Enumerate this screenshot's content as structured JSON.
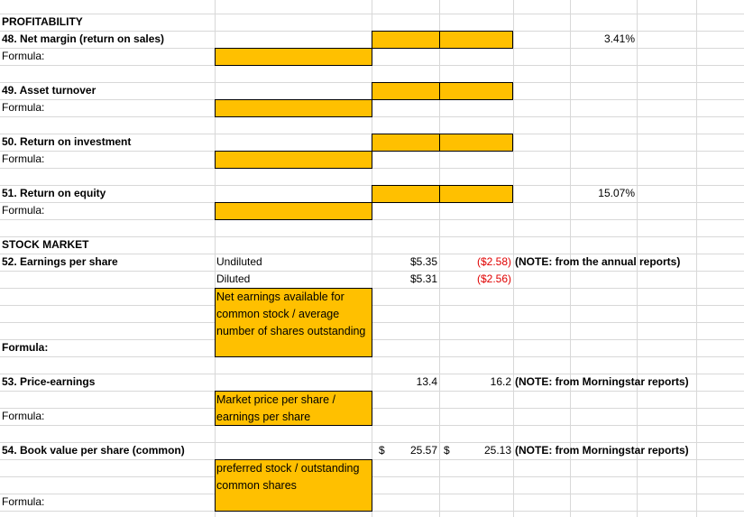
{
  "profitability": {
    "header": "PROFITABILITY",
    "net_margin": {
      "label": "48. Net margin (return on sales)",
      "formula_label": "Formula:",
      "value": "3.41%"
    },
    "asset_turnover": {
      "label": "49. Asset turnover",
      "formula_label": "Formula:"
    },
    "return_on_investment": {
      "label": "50. Return on investment",
      "formula_label": "Formula:"
    },
    "return_on_equity": {
      "label": "51. Return on equity",
      "formula_label": "Formula:",
      "value": "15.07%"
    }
  },
  "stock_market": {
    "header": "STOCK MARKET",
    "eps": {
      "label": "52. Earnings  per share",
      "undiluted_label": "Undiluted",
      "diluted_label": "Diluted",
      "undiluted_value": "$5.35",
      "diluted_value": "$5.31",
      "undiluted_compare": "($2.58)",
      "diluted_compare": "($2.56)",
      "note": "(NOTE: from the annual reports)",
      "formula_text": "Net earnings available for common stock / average number of shares outstanding",
      "formula_label": "Formula:"
    },
    "price_earnings": {
      "label": "53. Price-earnings",
      "value": "13.4",
      "compare": "16.2",
      "note": "(NOTE: from Morningstar reports)",
      "formula_text": "Market price per share / earnings per share",
      "formula_label": "Formula:"
    },
    "book_value": {
      "label": "54. Book value per share (common)",
      "currency_symbol": "$",
      "value": "25.57",
      "compare_currency_symbol": "$",
      "compare": "25.13",
      "note": "(NOTE: from Morningstar reports)",
      "formula_text": "preferred stock / outstanding common shares",
      "formula_label": "Formula:"
    }
  },
  "colors": {
    "input_fill": "#ffc000",
    "negative": "#e00000",
    "gridline": "#d8d8d8"
  }
}
